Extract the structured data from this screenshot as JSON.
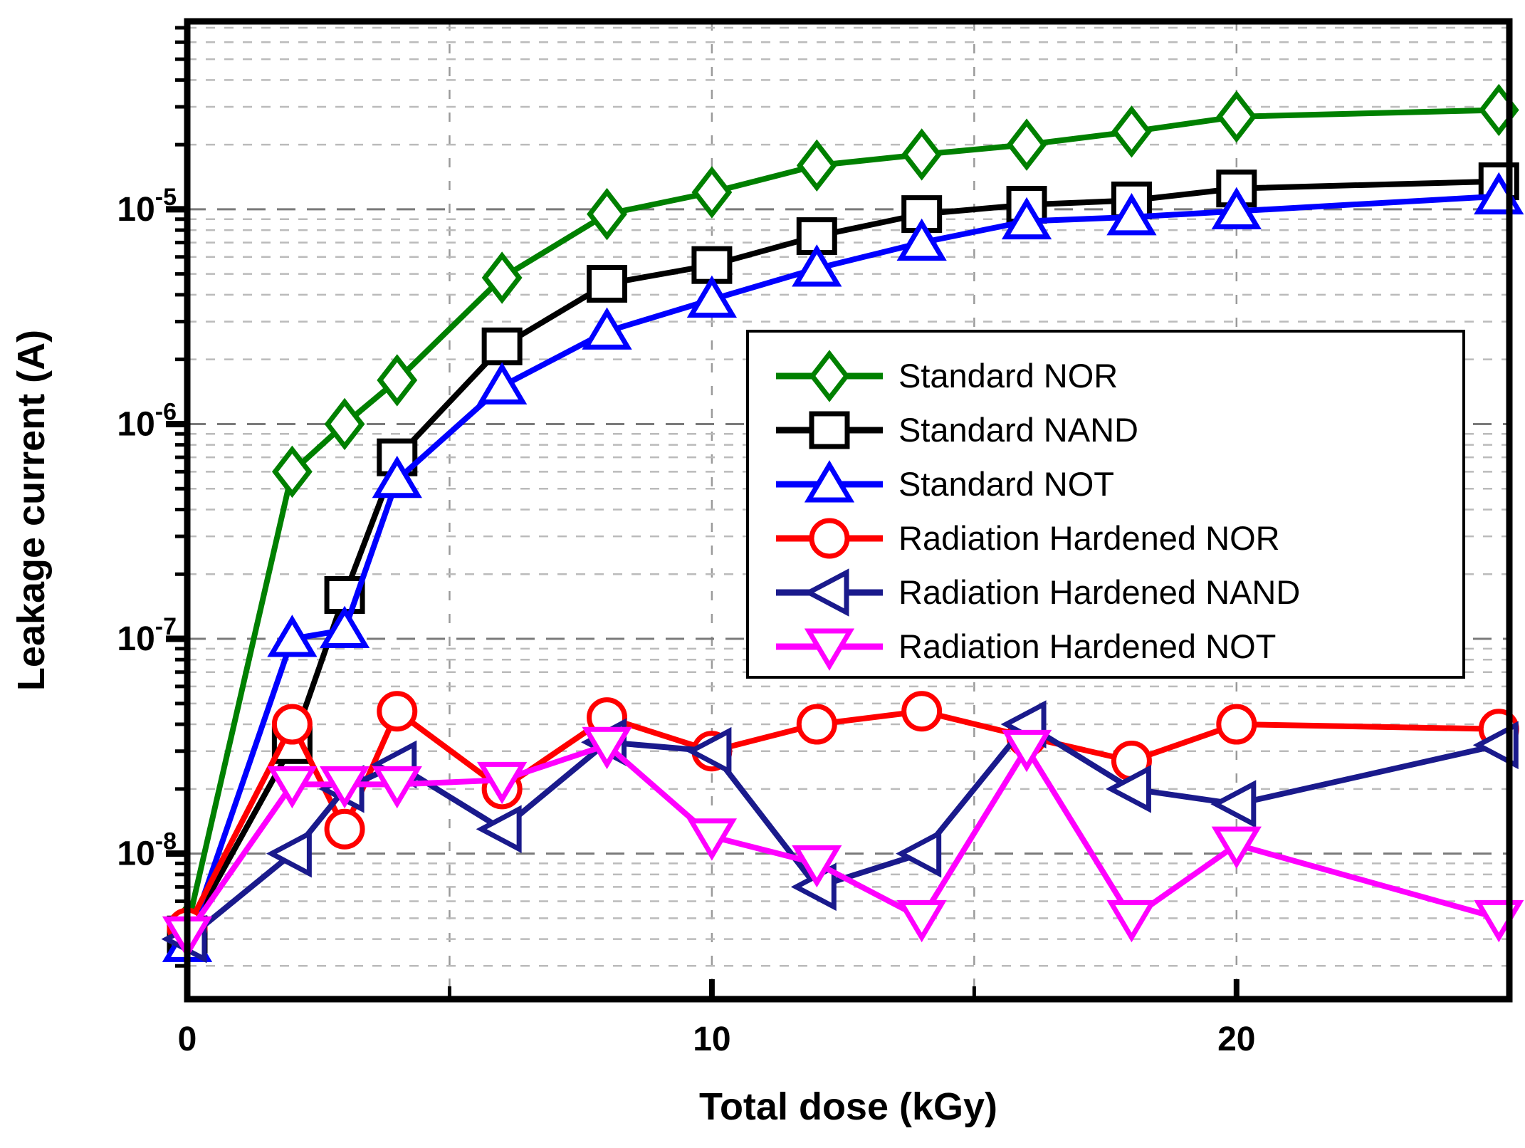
{
  "figure": {
    "title": "",
    "x_axis_label": "Total dose (kGy)",
    "y_axis_label": "Leakage current (A)"
  },
  "chart_data": {
    "type": "line",
    "title": "",
    "xlabel": "Total dose (kGy)",
    "ylabel": "Leakage current (A)",
    "xlim": [
      0,
      25.2
    ],
    "ylim": [
      2.1e-09,
      7.5e-05
    ],
    "y_scale": "log",
    "grid": true,
    "x_major_ticks": [
      0,
      10,
      20
    ],
    "x_major_tick_labels": [
      "0",
      "10",
      "20"
    ],
    "x_minor_ticks": [
      5,
      15
    ],
    "x_gridlines": [
      5,
      10,
      15,
      20
    ],
    "y_major_tick_exponents": [
      -5,
      -6,
      -7,
      -8
    ],
    "y_tick_label_base": "10",
    "legend_position": "center-right",
    "legend_entries": [
      "Standard NOR",
      "Standard NAND",
      "Standard NOT",
      "Radiation Hardened NOR",
      "Radiation Hardened NAND",
      "Radiation Hardened NOT"
    ],
    "x": [
      0,
      2,
      3,
      4,
      6,
      8,
      10,
      12,
      14,
      16,
      18,
      20,
      25
    ],
    "series": [
      {
        "name": "Standard NOR",
        "marker": "diamond",
        "color": "#008000",
        "values": [
          4.5e-09,
          6e-07,
          1e-06,
          1.6e-06,
          4.8e-06,
          9.5e-06,
          1.2e-05,
          1.6e-05,
          1.8e-05,
          2e-05,
          2.3e-05,
          2.7e-05,
          2.9e-05
        ]
      },
      {
        "name": "Standard NAND",
        "marker": "square",
        "color": "#000000",
        "values": [
          4.2e-09,
          3.2e-08,
          1.6e-07,
          7e-07,
          2.3e-06,
          4.5e-06,
          5.5e-06,
          7.5e-06,
          9.5e-06,
          1.05e-05,
          1.1e-05,
          1.25e-05,
          1.35e-05
        ]
      },
      {
        "name": "Standard NOT",
        "marker": "triangle-up",
        "color": "#0000ff",
        "values": [
          3.8e-09,
          1e-07,
          1.1e-07,
          5.5e-07,
          1.5e-06,
          2.7e-06,
          3.8e-06,
          5.3e-06,
          7e-06,
          8.8e-06,
          9.2e-06,
          9.8e-06,
          1.15e-05
        ]
      },
      {
        "name": "Radiation Hardened NOR",
        "marker": "circle",
        "color": "#ff0000",
        "values": [
          4.5e-09,
          4e-08,
          1.3e-08,
          4.6e-08,
          2e-08,
          4.3e-08,
          3e-08,
          4e-08,
          4.6e-08,
          3.5e-08,
          2.7e-08,
          4e-08,
          3.8e-08
        ]
      },
      {
        "name": "Radiation Hardened NAND",
        "marker": "triangle-left",
        "color": "#1a1a8c",
        "values": [
          4e-09,
          1e-08,
          2e-08,
          2.6e-08,
          1.3e-08,
          3.3e-08,
          3e-08,
          7e-09,
          1e-08,
          4e-08,
          2e-08,
          1.7e-08,
          3.2e-08
        ]
      },
      {
        "name": "Radiation Hardened NOT",
        "marker": "triangle-down",
        "color": "#ff00ff",
        "values": [
          4.2e-09,
          2.1e-08,
          2.1e-08,
          2.1e-08,
          2.2e-08,
          3.2e-08,
          1.2e-08,
          9e-09,
          5e-09,
          3.1e-08,
          5e-09,
          1.1e-08,
          5e-09
        ]
      }
    ],
    "style": {
      "frame_color": "#000000",
      "major_grid_color": "#7a7a7a",
      "minor_grid_color": "#bbbbbb",
      "vertical_grid_color": "#9a9a9a",
      "legend_border_color": "#000000",
      "legend_background": "#ffffff"
    }
  }
}
